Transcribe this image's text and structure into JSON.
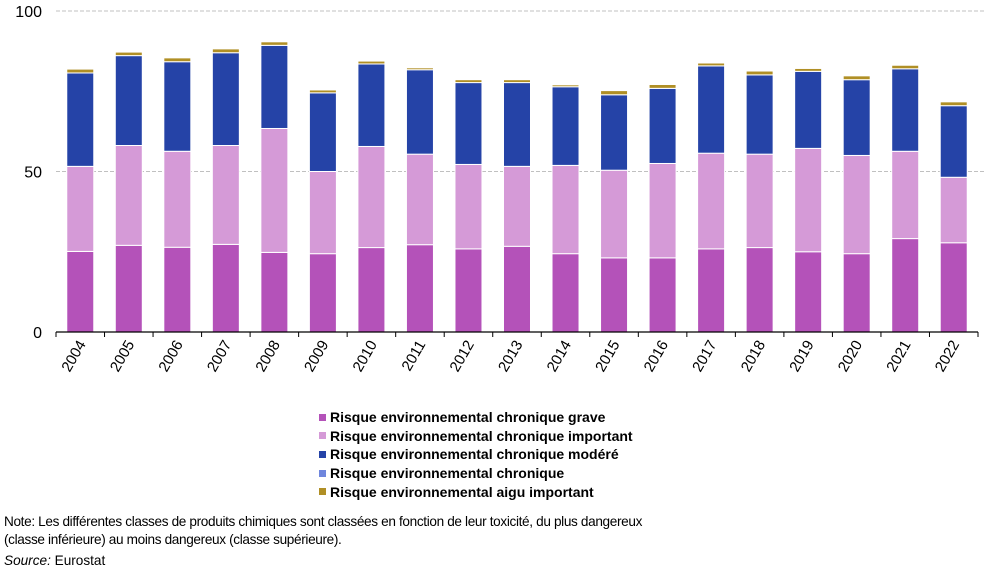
{
  "chart_data": {
    "type": "bar",
    "stacked": true,
    "title": "",
    "xlabel": "",
    "ylabel": "",
    "ylim": [
      0,
      100
    ],
    "yticks": [
      0,
      50,
      100
    ],
    "grid": true,
    "legend_position": "bottom-center",
    "categories": [
      "2004",
      "2005",
      "2006",
      "2007",
      "2008",
      "2009",
      "2010",
      "2011",
      "2012",
      "2013",
      "2014",
      "2015",
      "2016",
      "2017",
      "2018",
      "2019",
      "2020",
      "2021",
      "2022"
    ],
    "series": [
      {
        "name": "Risque environnemental chronique grave",
        "color": "#b452b9",
        "values": [
          25.1,
          27.0,
          26.4,
          27.3,
          24.8,
          24.4,
          26.3,
          27.2,
          25.9,
          26.7,
          24.4,
          23.1,
          23.1,
          25.9,
          26.3,
          25.0,
          24.4,
          29.1,
          27.8
        ]
      },
      {
        "name": "Risque environnemental chronique important",
        "color": "#d59ad7",
        "values": [
          26.5,
          31.1,
          29.9,
          30.8,
          38.6,
          25.6,
          31.5,
          28.2,
          26.3,
          24.9,
          27.5,
          27.3,
          29.4,
          29.8,
          29.1,
          32.2,
          30.6,
          27.2,
          20.4
        ]
      },
      {
        "name": "Risque environnemental chronique modéré",
        "color": "#2543a7",
        "values": [
          29.1,
          28.0,
          27.9,
          28.9,
          25.9,
          24.5,
          25.7,
          26.3,
          25.5,
          26.1,
          24.5,
          23.5,
          23.4,
          27.2,
          24.7,
          24.0,
          23.6,
          25.7,
          22.3
        ]
      },
      {
        "name": "Risque environnemental chronique",
        "color": "#6f86dd",
        "values": [
          0,
          0,
          0,
          0,
          0,
          0,
          0,
          0,
          0,
          0,
          0,
          0,
          0,
          0,
          0,
          0,
          0,
          0,
          0
        ]
      },
      {
        "name": "Risque environnemental aigu important",
        "color": "#b08f25",
        "values": [
          1.2,
          1.1,
          1.2,
          1.2,
          1.1,
          0.9,
          0.9,
          0.6,
          0.9,
          0.9,
          0.6,
          1.3,
          1.2,
          0.9,
          1.2,
          0.9,
          1.2,
          1.1,
          1.2
        ]
      }
    ]
  },
  "note": {
    "line1": "Note: Les différentes classes de produits chimiques sont classées en fonction de leur toxicité, du plus dangereux",
    "line2": "(classe inférieure) au moins dangereux (classe supérieure).",
    "source_label": "Source:",
    "source_value": " Eurostat"
  }
}
